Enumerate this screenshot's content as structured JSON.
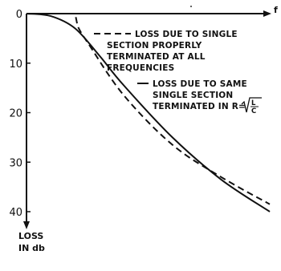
{
  "chart_data": {
    "type": "line",
    "x_axis_label": "f",
    "y_axis_label": [
      "LOSS",
      "IN db"
    ],
    "y_ticks": [
      "0",
      "10",
      "20",
      "30",
      "40"
    ],
    "ylim": [
      0,
      40
    ],
    "y_inverted": true,
    "series": [
      {
        "name": [
          "LOSS DUE TO SINGLE",
          "SECTION PROPERLY",
          "TERMINATED AT ALL",
          "FREQUENCIES"
        ],
        "style": "dashed",
        "color": "#111111",
        "x": [
          0,
          1,
          1.05,
          1.3,
          2,
          3,
          4,
          5
        ],
        "y": [
          0,
          0,
          2.5,
          6.5,
          16.5,
          26.5,
          33,
          38.5
        ]
      },
      {
        "name": [
          "LOSS DUE TO SAME",
          "SINGLE SECTION",
          "TERMINATED IN R="
        ],
        "formula": "√(L/C)",
        "style": "solid",
        "color": "#111111",
        "x": [
          0,
          0.5,
          1,
          1.5,
          2,
          3,
          4,
          5
        ],
        "y": [
          0,
          0.5,
          3,
          8.5,
          14.5,
          25,
          33.5,
          40
        ]
      }
    ]
  }
}
